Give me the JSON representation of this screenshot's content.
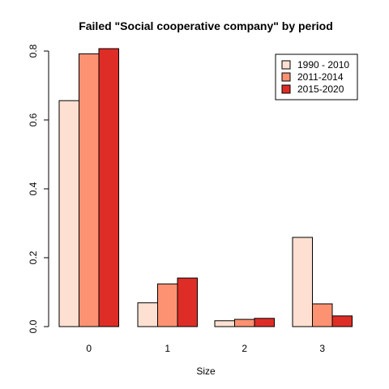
{
  "chart_data": {
    "type": "bar",
    "title": "Failed \"Social cooperative company\" by period",
    "xlabel": "Size",
    "ylabel": "",
    "categories": [
      "0",
      "1",
      "2",
      "3"
    ],
    "series": [
      {
        "name": "1990 - 2010",
        "color": "#FEE0D2",
        "values": [
          0.656,
          0.069,
          0.017,
          0.259
        ]
      },
      {
        "name": "2011-2014",
        "color": "#FC9272",
        "values": [
          0.792,
          0.124,
          0.021,
          0.066
        ]
      },
      {
        "name": "2015-2020",
        "color": "#DE2D26",
        "values": [
          0.807,
          0.141,
          0.024,
          0.031
        ]
      }
    ],
    "yticks": [
      "0.0",
      "0.2",
      "0.4",
      "0.6",
      "0.8"
    ],
    "ylim": [
      0,
      0.8
    ],
    "legend_position": "top-right",
    "grid": false
  }
}
